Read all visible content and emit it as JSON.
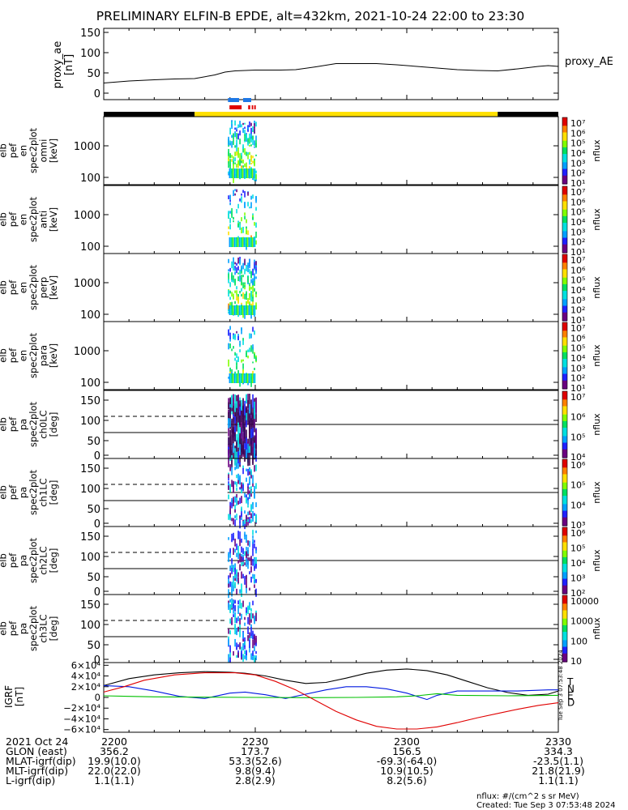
{
  "title": "PRELIMINARY ELFIN-B EPDE, alt=432km, 2021-10-24 22:00 to 23:30",
  "time_axis": {
    "start": "22:00",
    "end": "23:30",
    "tick_labels": [
      "2200",
      "2230",
      "2300",
      "2330"
    ],
    "tick_minutes": [
      0,
      30,
      60,
      90
    ]
  },
  "proxy_ae": {
    "ylabel": [
      "proxy_ae",
      "[nT]"
    ],
    "legend": "proxy_AE",
    "yticks": [
      "150",
      "100",
      "50",
      "0"
    ],
    "ylim": [
      0,
      150
    ],
    "color": "#000000",
    "minutes": [
      0,
      5,
      10,
      14,
      18,
      22,
      24,
      26,
      30,
      35,
      38,
      42,
      46,
      50,
      54,
      58,
      62,
      66,
      70,
      74,
      78,
      82,
      86,
      88,
      90
    ],
    "values": [
      25,
      30,
      33,
      35,
      36,
      45,
      52,
      55,
      57,
      57,
      58,
      65,
      73,
      73,
      73,
      70,
      66,
      62,
      58,
      56,
      55,
      60,
      66,
      68,
      66
    ]
  },
  "status_bar": {
    "segments": [
      {
        "start": 0,
        "end": 18,
        "color": "#000000"
      },
      {
        "start": 18,
        "end": 78,
        "color": "#ffe000"
      },
      {
        "start": 78,
        "end": 90,
        "color": "#000000"
      }
    ],
    "blue_marks": [
      [
        24.6,
        26.8
      ],
      [
        27.6,
        29.2
      ]
    ],
    "red_marks": [
      [
        24.9,
        27.3
      ],
      [
        28.6,
        29.0
      ],
      [
        29.3,
        29.6
      ],
      [
        29.8,
        30.1
      ]
    ],
    "blue_color": "#1e78e6",
    "red_color": "#e00000"
  },
  "panels": [
    {
      "id": "en-omni",
      "label": [
        "elb",
        "pef",
        "en",
        "spec2plot",
        "omni",
        "[keV]"
      ],
      "type": "energy",
      "yticks": [
        "1000",
        "100"
      ],
      "cbar_labels": [
        "10⁷",
        "10⁶",
        "10⁵",
        "10⁴",
        "10³",
        "10²",
        "10¹"
      ],
      "cbar_title": "nflux"
    },
    {
      "id": "en-anti",
      "label": [
        "elb",
        "pef",
        "en",
        "spec2plot",
        "anti",
        "[keV]"
      ],
      "type": "energy",
      "yticks": [
        "1000",
        "100"
      ],
      "cbar_labels": [
        "10⁷",
        "10⁶",
        "10⁵",
        "10⁴",
        "10³",
        "10²",
        "10¹"
      ],
      "cbar_title": "nflux"
    },
    {
      "id": "en-perp",
      "label": [
        "elb",
        "pef",
        "en",
        "spec2plot",
        "perp",
        "[keV]"
      ],
      "type": "energy",
      "yticks": [
        "1000",
        "100"
      ],
      "cbar_labels": [
        "10⁷",
        "10⁶",
        "10⁵",
        "10⁴",
        "10³",
        "10²",
        "10¹"
      ],
      "cbar_title": "nflux"
    },
    {
      "id": "en-para",
      "label": [
        "elb",
        "pef",
        "en",
        "spec2plot",
        "para",
        "[keV]"
      ],
      "type": "energy",
      "yticks": [
        "1000",
        "100"
      ],
      "cbar_labels": [
        "10⁷",
        "10⁶",
        "10⁵",
        "10⁴",
        "10³",
        "10²",
        "10¹"
      ],
      "cbar_title": "nflux"
    },
    {
      "id": "pa-ch0",
      "label": [
        "elb",
        "pef",
        "pa",
        "spec2plot",
        "ch0LC",
        "[deg]"
      ],
      "type": "pitch",
      "yticks": [
        "150",
        "100",
        "50",
        "0"
      ],
      "cbar_labels": [
        "10⁷",
        "10⁶",
        "10⁵",
        "10⁴"
      ],
      "cbar_title": "nflux"
    },
    {
      "id": "pa-ch1",
      "label": [
        "elb",
        "pef",
        "pa",
        "spec2plot",
        "ch1LC",
        "[deg]"
      ],
      "type": "pitch",
      "yticks": [
        "150",
        "100",
        "50",
        "0"
      ],
      "cbar_labels": [
        "10⁶",
        "10⁵",
        "10⁴",
        "10³"
      ],
      "cbar_title": "nflux"
    },
    {
      "id": "pa-ch2",
      "label": [
        "elb",
        "pef",
        "pa",
        "spec2plot",
        "ch2LC",
        "[deg]"
      ],
      "type": "pitch",
      "yticks": [
        "150",
        "100",
        "50",
        "0"
      ],
      "cbar_labels": [
        "10⁶",
        "10⁵",
        "10⁴",
        "10³",
        "10²"
      ],
      "cbar_title": "nflux"
    },
    {
      "id": "pa-ch3",
      "label": [
        "elb",
        "pef",
        "pa",
        "spec2plot",
        "ch3LC",
        "[deg]"
      ],
      "type": "pitch",
      "yticks": [
        "150",
        "100",
        "50",
        "0"
      ],
      "cbar_labels": [
        "10000",
        "1000",
        "100",
        "10"
      ],
      "cbar_title": "nflux"
    }
  ],
  "igrf": {
    "ylabel": [
      "IGRF",
      "[nT]"
    ],
    "yticks": [
      "6×10⁴",
      "4×10⁴",
      "2×10⁴",
      "0",
      "−2×10⁴",
      "−4×10⁴",
      "−6×10⁴"
    ],
    "ylim": [
      -65000,
      65000
    ],
    "legend": [
      "T",
      "N",
      "E",
      "D"
    ],
    "series": [
      {
        "name": "T",
        "color": "#000000",
        "minutes": [
          0,
          5,
          10,
          15,
          20,
          25,
          28,
          32,
          36,
          40,
          44,
          48,
          52,
          56,
          60,
          64,
          68,
          72,
          76,
          80,
          84,
          88,
          90
        ],
        "values": [
          22000,
          35000,
          42000,
          46000,
          48000,
          47000,
          45000,
          40000,
          32000,
          26000,
          28000,
          36000,
          45000,
          51000,
          53000,
          50000,
          42000,
          30000,
          18000,
          9000,
          4000,
          6000,
          12000
        ]
      },
      {
        "name": "N",
        "color": "#0018e0",
        "minutes": [
          0,
          5,
          10,
          15,
          20,
          25,
          28,
          32,
          36,
          40,
          44,
          48,
          52,
          56,
          60,
          62,
          64,
          66,
          70,
          76,
          82,
          88,
          90
        ],
        "values": [
          22000,
          20000,
          12000,
          2000,
          -2000,
          8000,
          10000,
          5000,
          -2000,
          6000,
          14000,
          20000,
          20000,
          16000,
          8000,
          2000,
          -4000,
          4000,
          12000,
          12000,
          12000,
          14000,
          14000
        ]
      },
      {
        "name": "E",
        "color": "#00c000",
        "minutes": [
          0,
          5,
          10,
          20,
          30,
          40,
          50,
          58,
          62,
          66,
          70,
          80,
          90
        ],
        "values": [
          3000,
          2000,
          1000,
          500,
          0,
          -500,
          0,
          1000,
          3000,
          7000,
          4000,
          3000,
          4000
        ]
      },
      {
        "name": "D",
        "color": "#e00000",
        "minutes": [
          0,
          4,
          8,
          14,
          20,
          26,
          30,
          34,
          38,
          42,
          46,
          50,
          54,
          58,
          62,
          66,
          70,
          74,
          78,
          82,
          86,
          90
        ],
        "values": [
          10000,
          20000,
          32000,
          42000,
          46000,
          46000,
          42000,
          30000,
          14000,
          -6000,
          -26000,
          -42000,
          -54000,
          -59000,
          -59000,
          -55000,
          -47000,
          -38000,
          -30000,
          -22000,
          -15000,
          -10000
        ]
      }
    ]
  },
  "footer": {
    "rows": [
      {
        "label": "2021 Oct 24",
        "values": [
          "2200",
          "2230",
          "2300",
          "2330"
        ]
      },
      {
        "label": "GLON (east)",
        "values": [
          "356.2",
          "173.7",
          "156.5",
          "334.3"
        ]
      },
      {
        "label": "MLAT-igrf(dip)",
        "values": [
          "19.9(10.0)",
          "53.3(52.6)",
          "-69.3(-64.0)",
          "-23.5(1.1)"
        ]
      },
      {
        "label": "MLT-igrf(dip)",
        "values": [
          "22.0(22.0)",
          "9.8(9.4)",
          "10.9(10.5)",
          "21.8(21.9)"
        ]
      },
      {
        "label": "L-igrf(dip)",
        "values": [
          "1.1(1.1)",
          "2.8(2.9)",
          "8.2(5.6)",
          "1.1(1.1)"
        ]
      }
    ],
    "units_note": "nflux: #/(cm^2 s sr MeV)",
    "created": "Created: Tue Sep  3 07:53:48 2024",
    "side_stamp": "Tue Sep  3 07:53:48 2024"
  }
}
